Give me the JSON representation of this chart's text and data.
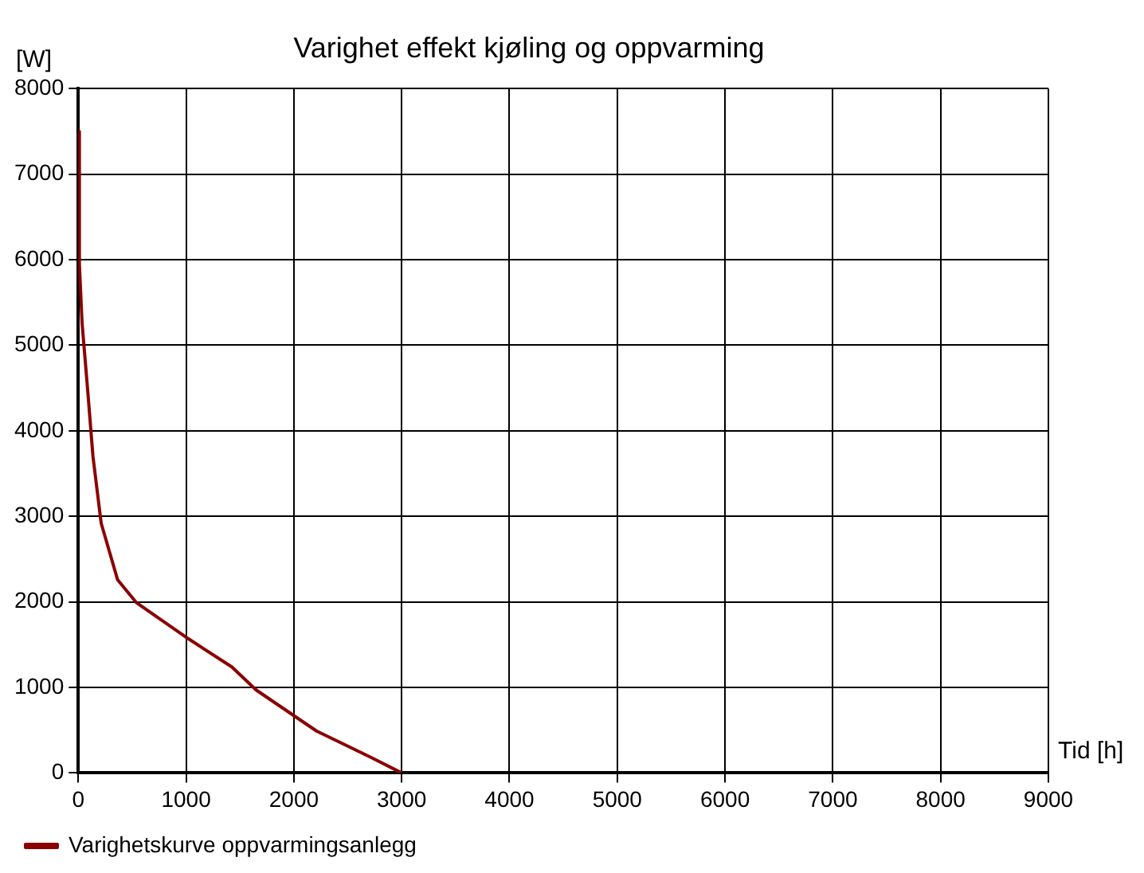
{
  "chart_data": {
    "type": "line",
    "title": "Varighet effekt kjøling og oppvarming",
    "xlabel": "Tid [h]",
    "ylabel": "[W]",
    "xlim": [
      0,
      9000
    ],
    "xticks": [
      0,
      1000,
      2000,
      3000,
      4000,
      5000,
      6000,
      7000,
      8000,
      9000
    ],
    "ylim": [
      0,
      8000
    ],
    "yticks": [
      0,
      1000,
      2000,
      3000,
      4000,
      5000,
      6000,
      7000,
      8000
    ],
    "grid": true,
    "legend": "bottom left",
    "marker": "none",
    "line_style": "solid",
    "series": [
      {
        "name": "Varighetskurve oppvarmingsanlegg",
        "color": "#8b0000",
        "x": [
          0,
          10,
          35,
          86,
          136,
          212,
          364,
          540,
          1020,
          1424,
          1650,
          2210,
          2710,
          3000
        ],
        "values": [
          7500,
          5950,
          5260,
          4490,
          3700,
          2920,
          2260,
          1990,
          1570,
          1240,
          970,
          490,
          185,
          0
        ]
      }
    ]
  }
}
